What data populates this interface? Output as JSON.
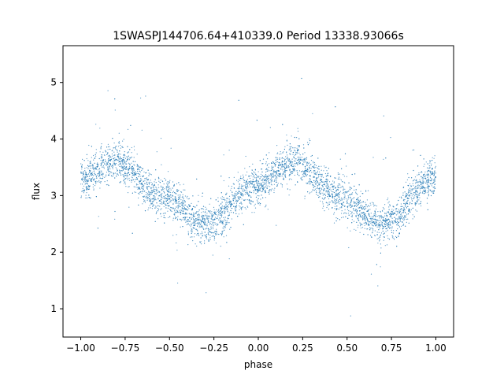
{
  "chart_data": {
    "type": "scatter",
    "title": "1SWASPJ144706.64+410339.0 Period 13338.93066s",
    "xlabel": "phase",
    "ylabel": "flux",
    "xlim": [
      -1.1,
      1.1
    ],
    "ylim": [
      0.5,
      5.65
    ],
    "xticks": [
      -1.0,
      -0.75,
      -0.5,
      -0.25,
      0.0,
      0.25,
      0.5,
      0.75,
      1.0
    ],
    "xtick_labels": [
      "−1.00",
      "−0.75",
      "−0.50",
      "−0.25",
      "0.00",
      "0.25",
      "0.50",
      "0.75",
      "1.00"
    ],
    "yticks": [
      1,
      2,
      3,
      4,
      5
    ],
    "ytick_labels": [
      "1",
      "2",
      "3",
      "4",
      "5"
    ],
    "grid": false,
    "legend": "none",
    "point_color": "#1f77b4",
    "x_range": [
      -1.0,
      1.0
    ],
    "curve_shape": [
      {
        "phase": -1.0,
        "flux": 3.3
      },
      {
        "phase": -0.8,
        "flux": 3.6
      },
      {
        "phase": -0.55,
        "flux": 3.0
      },
      {
        "phase": -0.3,
        "flux": 2.5
      },
      {
        "phase": 0.0,
        "flux": 3.2
      },
      {
        "phase": 0.2,
        "flux": 3.6
      },
      {
        "phase": 0.45,
        "flux": 3.0
      },
      {
        "phase": 0.7,
        "flux": 2.5
      },
      {
        "phase": 1.0,
        "flux": 3.3
      }
    ]
  }
}
